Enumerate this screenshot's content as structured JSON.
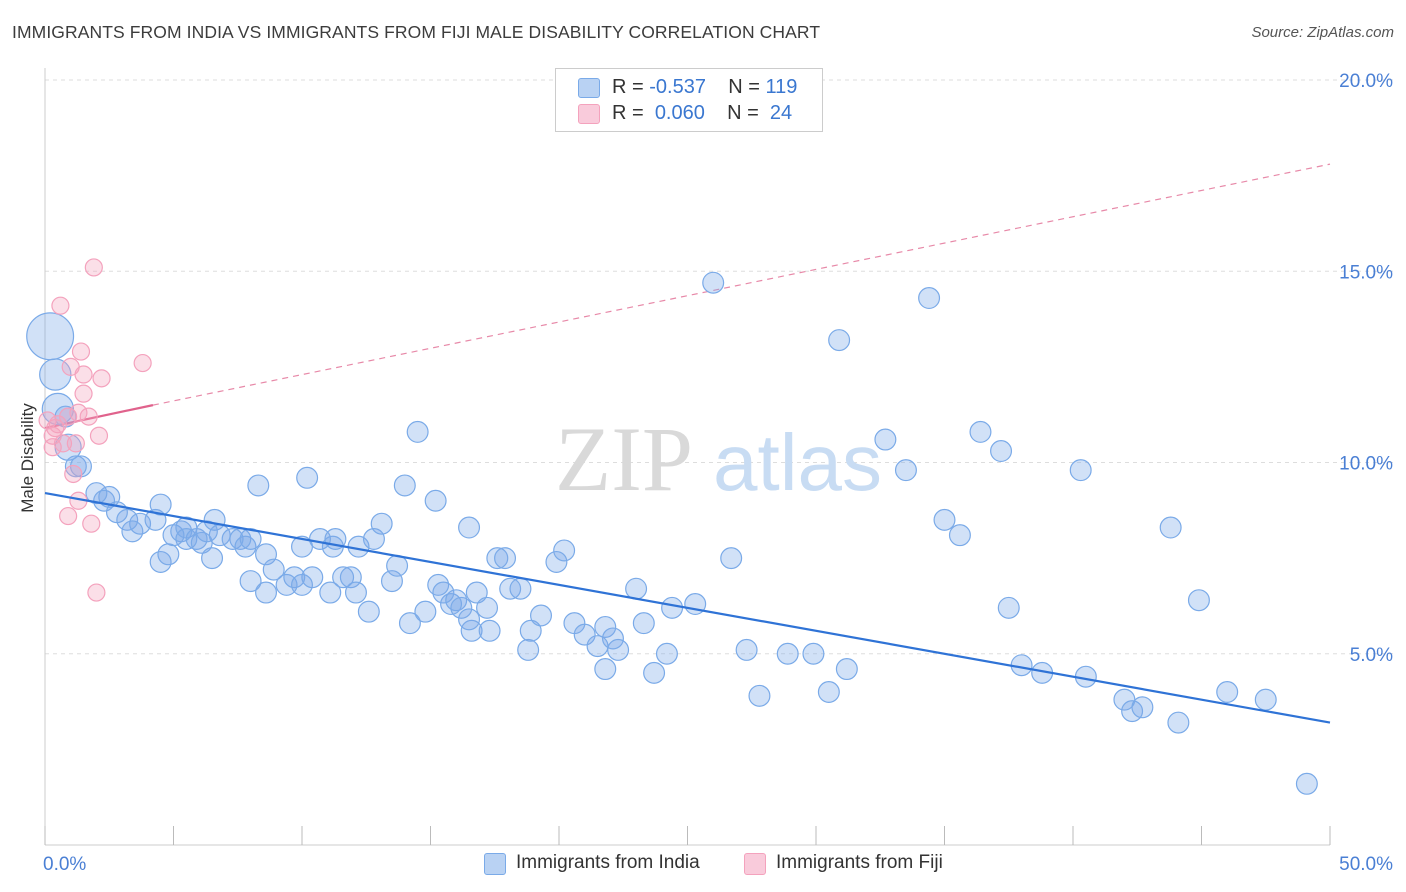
{
  "header": {
    "title": "IMMIGRANTS FROM INDIA VS IMMIGRANTS FROM FIJI MALE DISABILITY CORRELATION CHART",
    "source": "Source: ZipAtlas.com"
  },
  "legend_stats": [
    {
      "r_label": "R =",
      "r_value": "-0.537",
      "n_label": "N =",
      "n_value": "119"
    },
    {
      "r_label": "R =",
      "r_value": "0.060",
      "n_label": "N =",
      "n_value": "24"
    }
  ],
  "watermark": {
    "zip": "ZIP",
    "atlas": "atlas"
  },
  "chart_data": {
    "type": "scatter",
    "title": "IMMIGRANTS FROM INDIA VS IMMIGRANTS FROM FIJI MALE DISABILITY CORRELATION CHART",
    "xlabel": "",
    "ylabel": "Male Disability",
    "xlim": [
      0,
      50
    ],
    "ylim": [
      0,
      20
    ],
    "x_tick_labels": [
      "0.0%",
      "50.0%"
    ],
    "y_ticks": [
      5,
      10,
      15,
      20
    ],
    "y_tick_labels": [
      "5.0%",
      "10.0%",
      "15.0%",
      "20.0%"
    ],
    "grid": "horizontal dashed",
    "legend_position": "top-center and bottom",
    "colors": {
      "india": "#7aaae8",
      "india_line": "#2f73d6",
      "fiji": "#f4a2bd",
      "fiji_line": "#e0628c"
    },
    "series": [
      {
        "name": "Immigrants from India",
        "r": -0.537,
        "n": 119,
        "trend": {
          "x": [
            0,
            50
          ],
          "y": [
            9.2,
            3.2
          ]
        },
        "points": [
          [
            0.2,
            13.3,
            9
          ],
          [
            0.4,
            12.3,
            6
          ],
          [
            0.5,
            11.4,
            6
          ],
          [
            0.8,
            11.2,
            4
          ],
          [
            0.9,
            10.4,
            5
          ],
          [
            1.2,
            9.9,
            4
          ],
          [
            1.4,
            9.9,
            4
          ],
          [
            2.0,
            9.2,
            4
          ],
          [
            2.5,
            9.1,
            4
          ],
          [
            2.3,
            9.0,
            4
          ],
          [
            2.8,
            8.7,
            4
          ],
          [
            3.2,
            8.5,
            4
          ],
          [
            3.4,
            8.2,
            4
          ],
          [
            3.7,
            8.4,
            4
          ],
          [
            4.3,
            8.5,
            4
          ],
          [
            4.5,
            7.4,
            4
          ],
          [
            4.5,
            8.9,
            4
          ],
          [
            4.8,
            7.6,
            4
          ],
          [
            5.0,
            8.1,
            4
          ],
          [
            5.3,
            8.2,
            4
          ],
          [
            5.5,
            8.3,
            4
          ],
          [
            5.5,
            8.0,
            4
          ],
          [
            5.9,
            8.0,
            4
          ],
          [
            6.1,
            7.9,
            4
          ],
          [
            6.3,
            8.2,
            4
          ],
          [
            6.6,
            8.5,
            4
          ],
          [
            6.8,
            8.1,
            4
          ],
          [
            6.5,
            7.5,
            4
          ],
          [
            7.3,
            8.0,
            4
          ],
          [
            7.6,
            8.0,
            4
          ],
          [
            7.8,
            7.8,
            4
          ],
          [
            8.0,
            8.0,
            4
          ],
          [
            8.3,
            9.4,
            4
          ],
          [
            8.0,
            6.9,
            4
          ],
          [
            8.6,
            7.6,
            4
          ],
          [
            8.9,
            7.2,
            4
          ],
          [
            8.6,
            6.6,
            4
          ],
          [
            9.4,
            6.8,
            4
          ],
          [
            9.7,
            7.0,
            4
          ],
          [
            10.0,
            7.8,
            4
          ],
          [
            10.0,
            6.8,
            4
          ],
          [
            10.2,
            9.6,
            4
          ],
          [
            10.4,
            7.0,
            4
          ],
          [
            10.7,
            8.0,
            4
          ],
          [
            11.1,
            6.6,
            4
          ],
          [
            11.2,
            7.8,
            4
          ],
          [
            11.3,
            8.0,
            4
          ],
          [
            11.6,
            7.0,
            4
          ],
          [
            11.9,
            7.0,
            4
          ],
          [
            12.1,
            6.6,
            4
          ],
          [
            12.2,
            7.8,
            4
          ],
          [
            12.6,
            6.1,
            4
          ],
          [
            12.8,
            8.0,
            4
          ],
          [
            13.1,
            8.4,
            4
          ],
          [
            13.5,
            6.9,
            4
          ],
          [
            13.7,
            7.3,
            4
          ],
          [
            14.0,
            9.4,
            4
          ],
          [
            14.2,
            5.8,
            4
          ],
          [
            14.5,
            10.8,
            4
          ],
          [
            14.8,
            6.1,
            4
          ],
          [
            15.2,
            9.0,
            4
          ],
          [
            15.3,
            6.8,
            4
          ],
          [
            15.5,
            6.6,
            4
          ],
          [
            15.8,
            6.3,
            4
          ],
          [
            16.0,
            6.4,
            4
          ],
          [
            16.2,
            6.2,
            4
          ],
          [
            16.6,
            5.6,
            4
          ],
          [
            16.5,
            8.3,
            4
          ],
          [
            16.5,
            5.9,
            4
          ],
          [
            16.8,
            6.6,
            4
          ],
          [
            17.2,
            6.2,
            4
          ],
          [
            17.3,
            5.6,
            4
          ],
          [
            17.6,
            7.5,
            4
          ],
          [
            17.9,
            7.5,
            4
          ],
          [
            18.1,
            6.7,
            4
          ],
          [
            18.5,
            6.7,
            4
          ],
          [
            18.8,
            5.1,
            4
          ],
          [
            18.9,
            5.6,
            4
          ],
          [
            19.3,
            6.0,
            4
          ],
          [
            19.9,
            7.4,
            4
          ],
          [
            20.2,
            7.7,
            4
          ],
          [
            20.6,
            5.8,
            4
          ],
          [
            21.0,
            5.5,
            4
          ],
          [
            21.5,
            5.2,
            4
          ],
          [
            21.8,
            4.6,
            4
          ],
          [
            21.8,
            5.7,
            4
          ],
          [
            22.1,
            5.4,
            4
          ],
          [
            22.3,
            5.1,
            4
          ],
          [
            23.0,
            6.7,
            4
          ],
          [
            23.3,
            5.8,
            4
          ],
          [
            23.7,
            4.5,
            4
          ],
          [
            24.2,
            5.0,
            4
          ],
          [
            24.4,
            6.2,
            4
          ],
          [
            25.3,
            6.3,
            4
          ],
          [
            26.0,
            14.7,
            4
          ],
          [
            26.7,
            7.5,
            4
          ],
          [
            27.3,
            5.1,
            4
          ],
          [
            27.8,
            3.9,
            4
          ],
          [
            28.9,
            5.0,
            4
          ],
          [
            29.9,
            5.0,
            4
          ],
          [
            30.5,
            4.0,
            4
          ],
          [
            31.2,
            4.6,
            4
          ],
          [
            30.9,
            13.2,
            4
          ],
          [
            32.7,
            10.6,
            4
          ],
          [
            33.5,
            9.8,
            4
          ],
          [
            34.4,
            14.3,
            4
          ],
          [
            35.0,
            8.5,
            4
          ],
          [
            35.6,
            8.1,
            4
          ],
          [
            36.4,
            10.8,
            4
          ],
          [
            37.2,
            10.3,
            4
          ],
          [
            37.5,
            6.2,
            4
          ],
          [
            38.0,
            4.7,
            4
          ],
          [
            38.8,
            4.5,
            4
          ],
          [
            40.3,
            9.8,
            4
          ],
          [
            40.5,
            4.4,
            4
          ],
          [
            42.0,
            3.8,
            4
          ],
          [
            42.3,
            3.5,
            4
          ],
          [
            42.7,
            3.6,
            4
          ],
          [
            43.8,
            8.3,
            4
          ],
          [
            44.1,
            3.2,
            4
          ],
          [
            44.9,
            6.4,
            4
          ],
          [
            46.0,
            4.0,
            4
          ],
          [
            47.5,
            3.8,
            4
          ],
          [
            49.1,
            1.6,
            4
          ]
        ]
      },
      {
        "name": "Immigrants from Fiji",
        "r": 0.06,
        "n": 24,
        "trend_solid": {
          "x": [
            0,
            4.2
          ],
          "y": [
            10.9,
            11.5
          ]
        },
        "trend_dashed": {
          "x": [
            4.2,
            50
          ],
          "y": [
            11.5,
            17.8
          ]
        },
        "points": [
          [
            0.1,
            11.1,
            5
          ],
          [
            0.3,
            10.7,
            5
          ],
          [
            0.4,
            10.9,
            5
          ],
          [
            0.6,
            14.1,
            5
          ],
          [
            0.7,
            10.5,
            5
          ],
          [
            0.9,
            11.2,
            5
          ],
          [
            1.0,
            12.5,
            5
          ],
          [
            0.9,
            8.6,
            5
          ],
          [
            1.1,
            9.7,
            5
          ],
          [
            1.2,
            10.5,
            5
          ],
          [
            1.3,
            11.3,
            5
          ],
          [
            1.4,
            12.9,
            5
          ],
          [
            1.3,
            9.0,
            5
          ],
          [
            1.5,
            11.8,
            5
          ],
          [
            1.7,
            11.2,
            5
          ],
          [
            1.8,
            8.4,
            5
          ],
          [
            1.9,
            15.1,
            5
          ],
          [
            2.0,
            6.6,
            5
          ],
          [
            2.1,
            10.7,
            5
          ],
          [
            2.2,
            12.2,
            5
          ],
          [
            0.5,
            11.0,
            5
          ],
          [
            0.3,
            10.4,
            5
          ],
          [
            1.5,
            12.3,
            5
          ],
          [
            3.8,
            12.6,
            5
          ]
        ]
      }
    ]
  },
  "bottom_legend": [
    {
      "label": "Immigrants from India",
      "color": "#b9d2f3",
      "border": "#7aaae8"
    },
    {
      "label": "Immigrants from Fiji",
      "color": "#f9cbdb",
      "border": "#f4a2bd"
    }
  ]
}
